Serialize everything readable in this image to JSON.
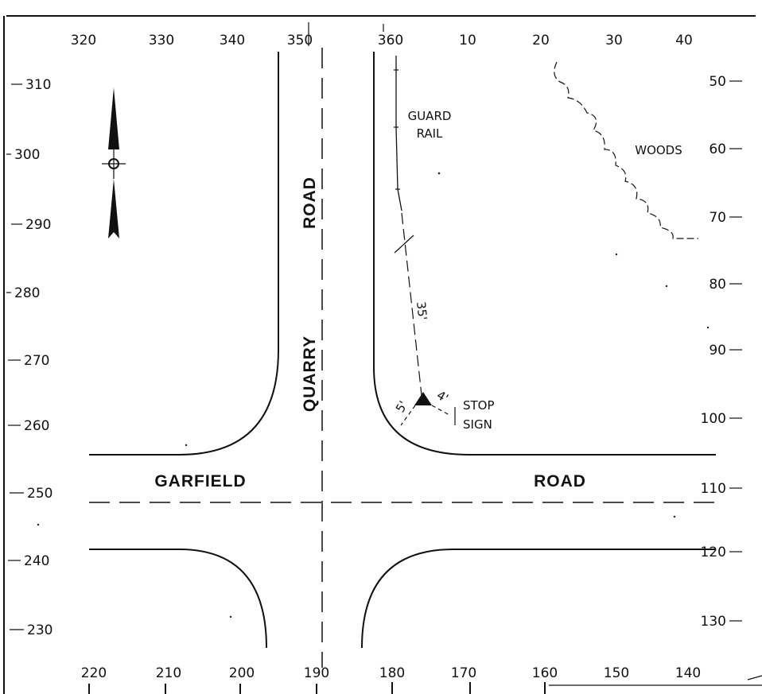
{
  "diagram": {
    "top_scale": [
      "320",
      "330",
      "340",
      "350",
      "360",
      "10",
      "20",
      "30",
      "40"
    ],
    "bottom_scale": [
      "220",
      "210",
      "200",
      "190",
      "180",
      "170",
      "160",
      "150",
      "140"
    ],
    "left_scale": [
      "310",
      "300",
      "290",
      "280",
      "270",
      "260",
      "250",
      "240",
      "230"
    ],
    "right_scale": [
      "50",
      "60",
      "70",
      "80",
      "90",
      "100",
      "110",
      "120",
      "130"
    ],
    "roads": {
      "quarry": [
        "QUARRY",
        "ROAD"
      ],
      "garfield": [
        "GARFIELD",
        "ROAD"
      ]
    },
    "labels": {
      "guard_rail": [
        "GUARD",
        "RAIL"
      ],
      "woods": "WOODS",
      "stop_sign": [
        "STOP",
        "SIGN"
      ]
    },
    "dimensions": {
      "rail_to_sign": "35'",
      "sign_to_curb": "5'",
      "sign_offset": "4'"
    },
    "colors": {
      "ink": "#111111",
      "paper": "#ffffff"
    }
  }
}
